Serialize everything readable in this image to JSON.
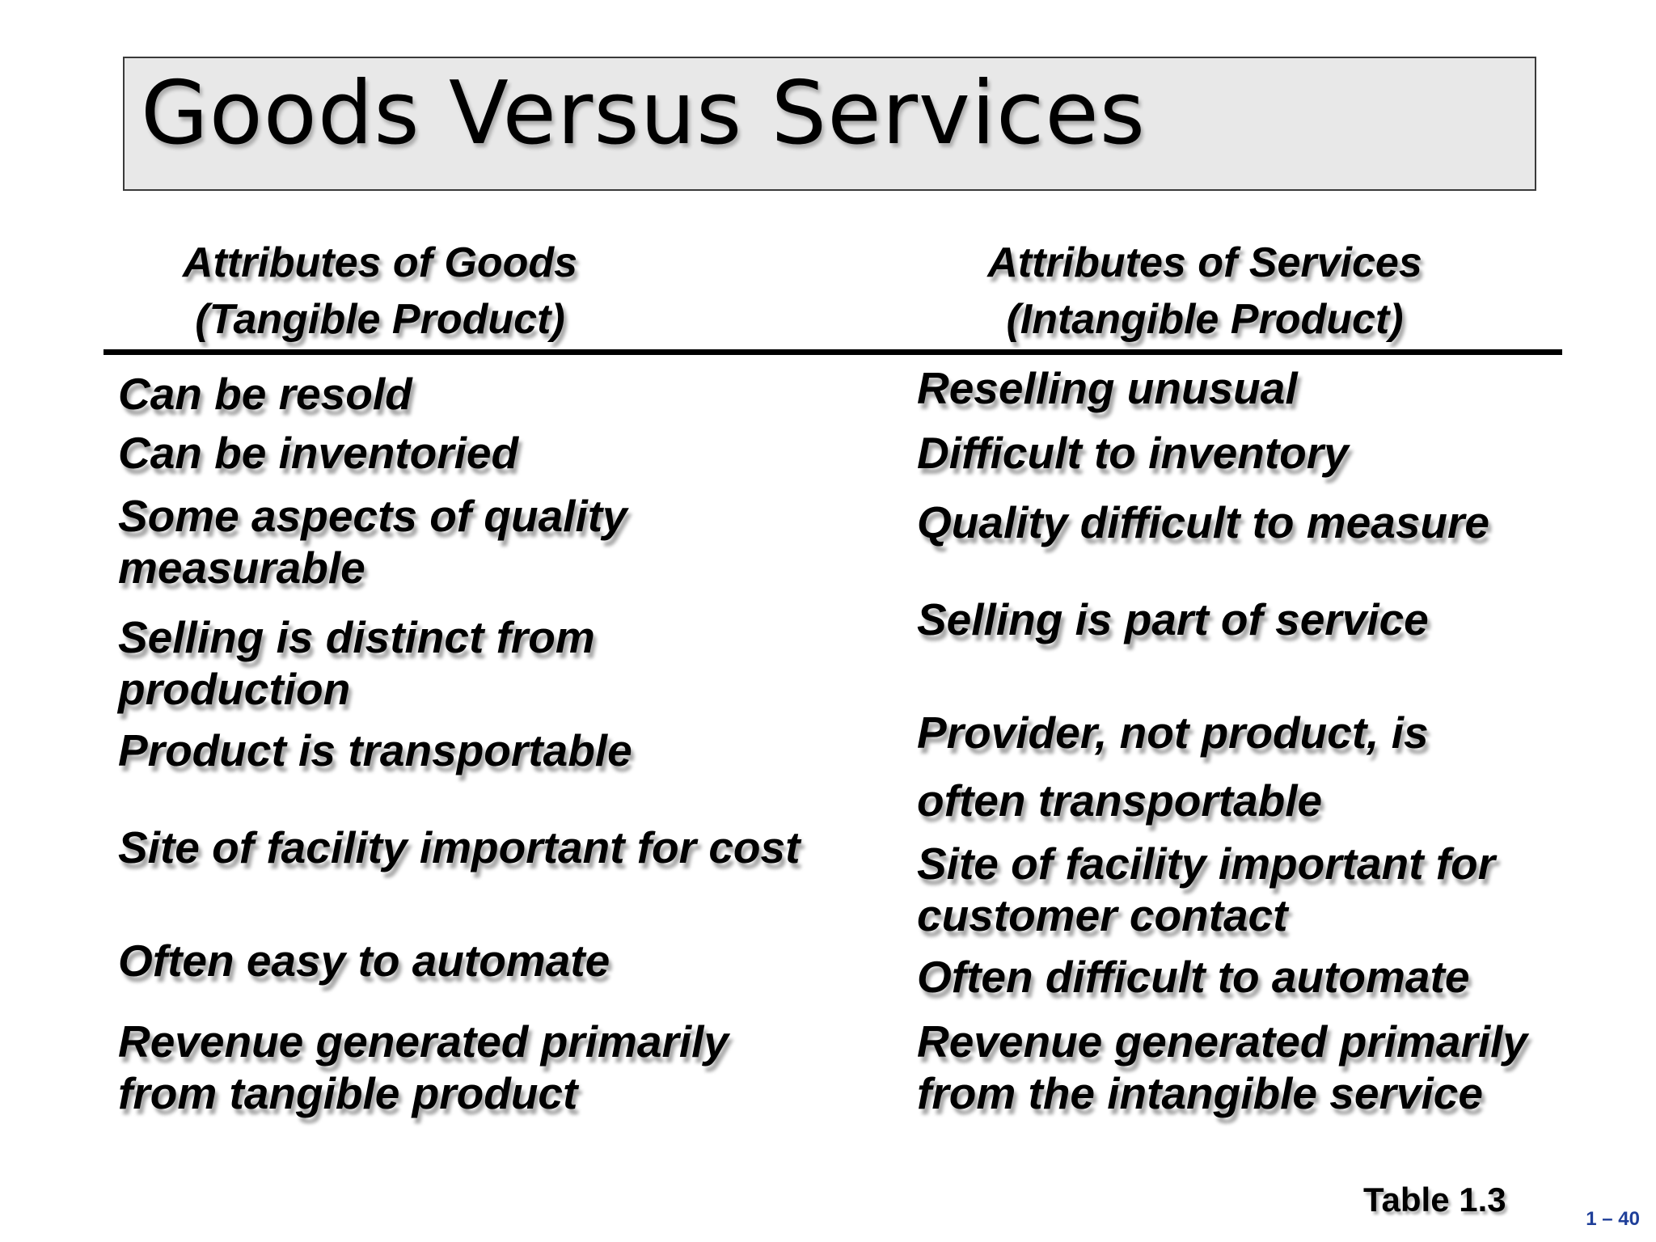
{
  "title": "Goods Versus Services",
  "goods_header": [
    "Attributes of Goods",
    "(Tangible Product)"
  ],
  "services_header": [
    "Attributes of Services",
    "(Intangible Product)"
  ],
  "goods": [
    [
      "Can be resold"
    ],
    [
      "Can be inventoried"
    ],
    [
      "Some aspects of quality",
      "measurable"
    ],
    [
      "Selling is distinct from",
      "production"
    ],
    [
      "Product is transportable"
    ],
    [
      "Site of facility important for cost"
    ],
    [
      "Often easy to automate"
    ],
    [
      "Revenue generated primarily",
      "from tangible product"
    ]
  ],
  "services": [
    [
      "Reselling unusual"
    ],
    [
      "Difficult to inventory"
    ],
    [
      "Quality difficult to measure"
    ],
    [
      "Selling is part of service"
    ],
    [
      "Provider, not product, is",
      "often transportable"
    ],
    [
      "Site of facility important for",
      "customer contact"
    ],
    [
      "Often difficult to automate"
    ],
    [
      "Revenue generated primarily",
      "from the intangible service"
    ]
  ],
  "table_label": "Table 1.3",
  "slide_number": "1 – 40"
}
